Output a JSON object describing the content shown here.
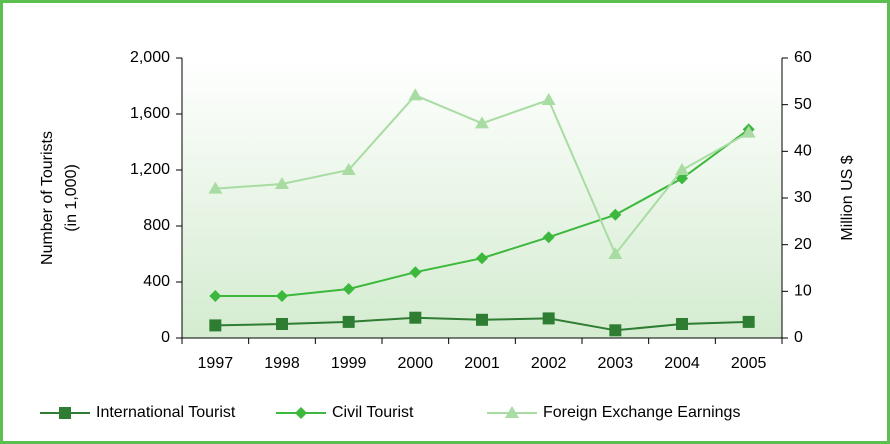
{
  "chart_data": {
    "type": "line",
    "ylabel": [
      "Number of Tourists",
      "(in 1,000)"
    ],
    "y2label": "Million US $",
    "categories": [
      "1997",
      "1998",
      "1999",
      "2000",
      "2001",
      "2002",
      "2003",
      "2004",
      "2005"
    ],
    "series": [
      {
        "name": "International Tourist",
        "color": "#2e7d32",
        "marker": "square",
        "values": [
          90,
          100,
          115,
          145,
          130,
          140,
          55,
          100,
          115
        ]
      },
      {
        "name": "Civil Tourist",
        "color": "#3cb83c",
        "marker": "diamond",
        "values": [
          300,
          300,
          350,
          470,
          570,
          720,
          880,
          1140,
          1490
        ]
      },
      {
        "name": "Foreign Exchange Earnings",
        "color": "#a8dca2",
        "marker": "triangle",
        "axis": "y2",
        "values": [
          32,
          33,
          36,
          52,
          46,
          51,
          18,
          36,
          44
        ]
      }
    ],
    "ylim": [
      0,
      2000
    ],
    "yticks": [
      0,
      400,
      800,
      {
        "value": 1200,
        "label": "1,200"
      },
      {
        "value": 1600,
        "label": "1,600"
      },
      {
        "value": 2000,
        "label": "2,000"
      }
    ],
    "y2lim": [
      0,
      60
    ],
    "y2ticks": [
      0,
      10,
      20,
      30,
      40,
      50,
      60
    ],
    "legend": "bottom"
  }
}
